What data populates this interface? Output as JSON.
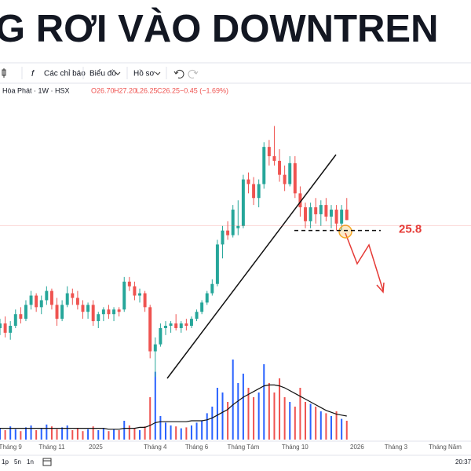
{
  "header": {
    "title": "G RƠI VÀO DOWNTREN"
  },
  "toolbar": {
    "indicators": "Các chỉ báo",
    "chart": "Biểu đồ",
    "profile": "Hồ sơ"
  },
  "legend": {
    "symbol": "Hòa Phát · 1W · HSX",
    "open": "O26.70",
    "high": "H27.20",
    "low": "L26.25",
    "close": "C26.25",
    "change": "−0.45 (−1.69%)"
  },
  "chart_data": {
    "type": "candlestick",
    "candles": [
      [
        21.6,
        22.0,
        21.3,
        21.8
      ],
      [
        21.8,
        22.1,
        21.2,
        21.4
      ],
      [
        21.4,
        21.9,
        21.1,
        21.7
      ],
      [
        21.7,
        22.4,
        21.6,
        22.2
      ],
      [
        22.2,
        22.5,
        21.8,
        22.0
      ],
      [
        22.0,
        22.8,
        21.9,
        22.6
      ],
      [
        22.6,
        23.2,
        22.4,
        23.0
      ],
      [
        23.0,
        23.1,
        22.3,
        22.5
      ],
      [
        22.5,
        23.0,
        22.2,
        22.8
      ],
      [
        22.8,
        23.4,
        22.6,
        23.2
      ],
      [
        23.2,
        23.3,
        22.4,
        22.6
      ],
      [
        22.6,
        22.9,
        21.7,
        22.0
      ],
      [
        22.0,
        22.8,
        21.9,
        22.6
      ],
      [
        22.6,
        23.4,
        22.5,
        23.1
      ],
      [
        23.1,
        23.3,
        22.6,
        22.9
      ],
      [
        22.9,
        23.2,
        22.4,
        22.6
      ],
      [
        22.6,
        22.8,
        22.0,
        22.3
      ],
      [
        22.3,
        22.7,
        22.0,
        22.6
      ],
      [
        22.6,
        22.8,
        21.7,
        21.9
      ],
      [
        21.9,
        22.3,
        21.6,
        22.2
      ],
      [
        22.2,
        22.5,
        21.9,
        22.4
      ],
      [
        22.4,
        22.6,
        22.0,
        22.2
      ],
      [
        22.2,
        22.5,
        21.9,
        22.4
      ],
      [
        22.4,
        22.5,
        22.1,
        22.3
      ],
      [
        22.4,
        23.8,
        22.3,
        23.6
      ],
      [
        23.6,
        23.8,
        23.2,
        23.4
      ],
      [
        23.4,
        23.6,
        22.8,
        23.0
      ],
      [
        23.0,
        23.3,
        22.7,
        23.1
      ],
      [
        23.1,
        23.2,
        22.3,
        22.5
      ],
      [
        22.5,
        22.6,
        20.3,
        20.6
      ],
      [
        20.6,
        21.2,
        19.5,
        20.9
      ],
      [
        20.9,
        21.8,
        20.8,
        21.6
      ],
      [
        21.6,
        21.9,
        21.3,
        21.7
      ],
      [
        21.7,
        21.9,
        21.4,
        21.8
      ],
      [
        21.8,
        22.2,
        21.5,
        21.6
      ],
      [
        21.6,
        21.9,
        21.4,
        21.8
      ],
      [
        21.8,
        22.0,
        21.5,
        21.7
      ],
      [
        21.7,
        22.1,
        21.6,
        22.0
      ],
      [
        22.0,
        22.4,
        21.9,
        22.3
      ],
      [
        22.3,
        22.8,
        22.2,
        22.7
      ],
      [
        22.7,
        23.2,
        22.6,
        23.1
      ],
      [
        23.1,
        23.7,
        23.0,
        23.5
      ],
      [
        23.5,
        25.4,
        23.4,
        25.2
      ],
      [
        25.2,
        26.0,
        24.6,
        25.8
      ],
      [
        25.8,
        26.2,
        25.4,
        25.6
      ],
      [
        25.6,
        26.9,
        25.5,
        26.7
      ],
      [
        25.9,
        27.1,
        25.6,
        26.0
      ],
      [
        26.0,
        28.2,
        25.9,
        28.0
      ],
      [
        28.0,
        28.3,
        27.4,
        27.8
      ],
      [
        27.8,
        28.1,
        26.9,
        27.2
      ],
      [
        27.2,
        28.0,
        26.8,
        27.8
      ],
      [
        27.8,
        29.6,
        27.6,
        29.4
      ],
      [
        29.4,
        29.7,
        28.6,
        29.0
      ],
      [
        29.0,
        30.3,
        28.6,
        28.8
      ],
      [
        28.8,
        29.3,
        27.9,
        28.2
      ],
      [
        28.2,
        28.6,
        27.5,
        27.8
      ],
      [
        27.8,
        29.0,
        27.7,
        28.7
      ],
      [
        28.7,
        29.0,
        27.2,
        27.4
      ],
      [
        27.4,
        27.7,
        26.4,
        26.8
      ],
      [
        26.8,
        27.0,
        25.9,
        26.2
      ],
      [
        26.2,
        27.0,
        25.9,
        26.8
      ],
      [
        26.8,
        27.2,
        26.1,
        26.5
      ],
      [
        26.5,
        27.1,
        26.0,
        26.9
      ],
      [
        26.9,
        27.2,
        26.2,
        26.4
      ],
      [
        26.4,
        26.9,
        25.9,
        26.7
      ],
      [
        26.7,
        26.9,
        25.8,
        26.1
      ],
      [
        26.1,
        26.9,
        25.8,
        26.7
      ],
      [
        26.7,
        27.2,
        26.25,
        26.25
      ]
    ],
    "volume": [
      12,
      10,
      14,
      11,
      9,
      13,
      15,
      10,
      12,
      16,
      14,
      11,
      13,
      15,
      10,
      12,
      9,
      11,
      14,
      10,
      12,
      9,
      11,
      10,
      20,
      15,
      12,
      10,
      14,
      45,
      72,
      25,
      18,
      15,
      14,
      12,
      13,
      15,
      18,
      20,
      28,
      35,
      55,
      50,
      40,
      85,
      60,
      70,
      55,
      45,
      50,
      80,
      60,
      50,
      65,
      45,
      40,
      35,
      55,
      40,
      38,
      35,
      30,
      28,
      25,
      30,
      22,
      20
    ],
    "volume_ma": [
      12,
      12,
      12,
      12,
      12,
      12,
      12,
      12,
      12,
      12,
      12,
      12,
      12,
      12,
      12,
      12,
      12,
      12,
      12,
      12,
      12,
      11,
      11,
      11,
      12,
      12,
      12,
      13,
      13,
      15,
      18,
      19,
      19,
      19,
      19,
      19,
      19,
      20,
      20,
      20,
      21,
      23,
      26,
      29,
      32,
      37,
      41,
      45,
      48,
      51,
      54,
      57,
      58,
      58,
      57,
      55,
      52,
      49,
      46,
      43,
      40,
      37,
      34,
      31,
      29,
      27,
      26,
      25
    ],
    "xlim": [
      0,
      91
    ],
    "ylim": [
      16.8,
      31.5
    ],
    "volume_lim": [
      0,
      100
    ],
    "xticks": [
      {
        "value": 2,
        "label": "Tháng 9"
      },
      {
        "value": 10,
        "label": "Tháng 11"
      },
      {
        "value": 18.5,
        "label": "2025"
      },
      {
        "value": 30,
        "label": "Tháng 4"
      },
      {
        "value": 38,
        "label": "Tháng 6"
      },
      {
        "value": 47,
        "label": "Tháng Tám"
      },
      {
        "value": 57,
        "label": "Tháng 10"
      },
      {
        "value": 69,
        "label": "2026"
      },
      {
        "value": 76.5,
        "label": "Tháng 3"
      },
      {
        "value": 86,
        "label": "Tháng Năm"
      }
    ],
    "level": 25.8,
    "up_color": "#26a69a",
    "down_color": "#ef5350",
    "volume_up_color": "#2962ff",
    "volume_down_color": "#ef5350",
    "ma_color": "#111111",
    "level_color": "#e53935"
  },
  "footer": {
    "ranges": [
      "1p",
      "5n",
      "1n"
    ],
    "time": "20:37"
  }
}
